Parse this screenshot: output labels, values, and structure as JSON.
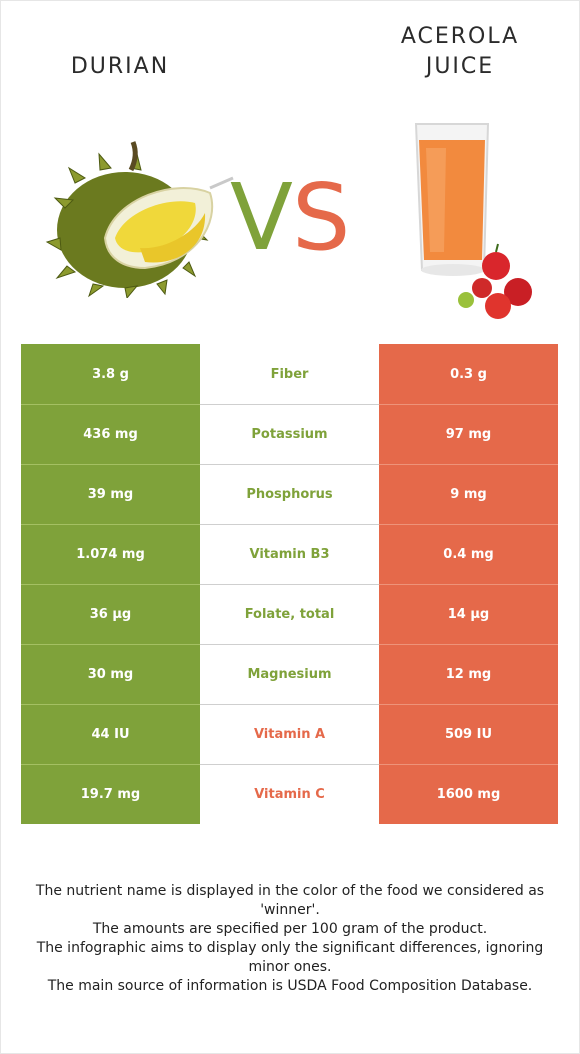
{
  "header": {
    "left_title": [
      "DURIAN"
    ],
    "right_title": [
      "ACEROLA",
      "JUICE"
    ],
    "vs_text": [
      "V",
      "S"
    ]
  },
  "colors": {
    "left": "#7fa23a",
    "right": "#e5694a"
  },
  "table": {
    "rows": [
      {
        "left": "3.8 g",
        "nutrient": "Fiber",
        "right": "0.3 g",
        "winner": "left"
      },
      {
        "left": "436 mg",
        "nutrient": "Potassium",
        "right": "97 mg",
        "winner": "left"
      },
      {
        "left": "39 mg",
        "nutrient": "Phosphorus",
        "right": "9 mg",
        "winner": "left"
      },
      {
        "left": "1.074 mg",
        "nutrient": "Vitamin B3",
        "right": "0.4 mg",
        "winner": "left"
      },
      {
        "left": "36 µg",
        "nutrient": "Folate, total",
        "right": "14 µg",
        "winner": "left"
      },
      {
        "left": "30 mg",
        "nutrient": "Magnesium",
        "right": "12 mg",
        "winner": "left"
      },
      {
        "left": "44 IU",
        "nutrient": "Vitamin A",
        "right": "509 IU",
        "winner": "right"
      },
      {
        "left": "19.7 mg",
        "nutrient": "Vitamin C",
        "right": "1600 mg",
        "winner": "right"
      }
    ]
  },
  "footer": {
    "notes": [
      "The nutrient name is displayed in the color of the food we considered as 'winner'.",
      "The amounts are specified per 100 gram of the product.",
      "The infographic aims to display only the significant differences, ignoring minor ones.",
      "The main source of information is USDA Food Composition Database."
    ]
  }
}
